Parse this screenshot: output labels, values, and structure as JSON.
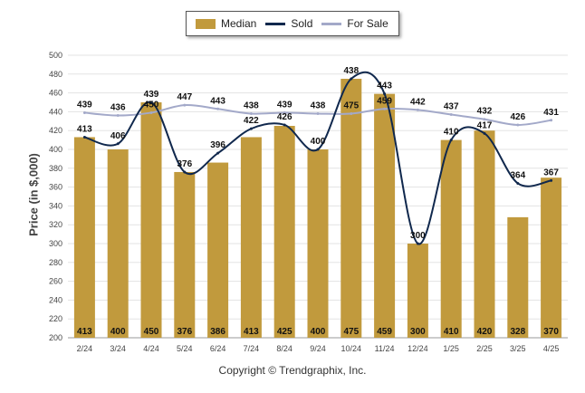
{
  "chart_data": {
    "type": "bar",
    "categories": [
      "2/24",
      "3/24",
      "4/24",
      "5/24",
      "6/24",
      "7/24",
      "8/24",
      "9/24",
      "10/24",
      "11/24",
      "12/24",
      "1/25",
      "2/25",
      "3/25",
      "4/25"
    ],
    "series": [
      {
        "name": "Median",
        "type": "bar",
        "color": "#c19a3d",
        "values": [
          413,
          400,
          450,
          376,
          386,
          413,
          425,
          400,
          475,
          459,
          300,
          410,
          420,
          328,
          370
        ]
      },
      {
        "name": "Sold",
        "type": "line",
        "color": "#10284d",
        "values": [
          413,
          406,
          450,
          376,
          396,
          422,
          426,
          400,
          475,
          459,
          300,
          410,
          417,
          364,
          367
        ]
      },
      {
        "name": "For Sale",
        "type": "line",
        "color": "#a3a9c9",
        "values": [
          439,
          436,
          439,
          447,
          443,
          438,
          439,
          438,
          438,
          443,
          442,
          437,
          432,
          426,
          431
        ]
      }
    ],
    "top_labels": [
      [
        "439",
        "413"
      ],
      [
        "436",
        "406"
      ],
      [
        "450",
        "439"
      ],
      [
        "447",
        "376"
      ],
      [
        "443",
        "396"
      ],
      [
        "438",
        "422"
      ],
      [
        "439",
        "426"
      ],
      [
        "438",
        "400"
      ],
      [
        "475",
        "438"
      ],
      [
        "459",
        "443"
      ],
      [
        "442",
        "300"
      ],
      [
        "437",
        "410"
      ],
      [
        "432",
        "417"
      ],
      [
        "426",
        "364"
      ],
      [
        "431",
        "367"
      ]
    ],
    "ylabel": "Price (in $,000)",
    "ylim": [
      200,
      500
    ],
    "yticks": [
      200,
      220,
      240,
      260,
      280,
      300,
      320,
      340,
      360,
      380,
      400,
      420,
      440,
      460,
      480,
      500
    ],
    "grid": true,
    "legend_position": "top"
  },
  "legend": {
    "median": "Median",
    "sold": "Sold",
    "for_sale": "For Sale"
  },
  "copyright": "Copyright © Trendgraphix, Inc."
}
